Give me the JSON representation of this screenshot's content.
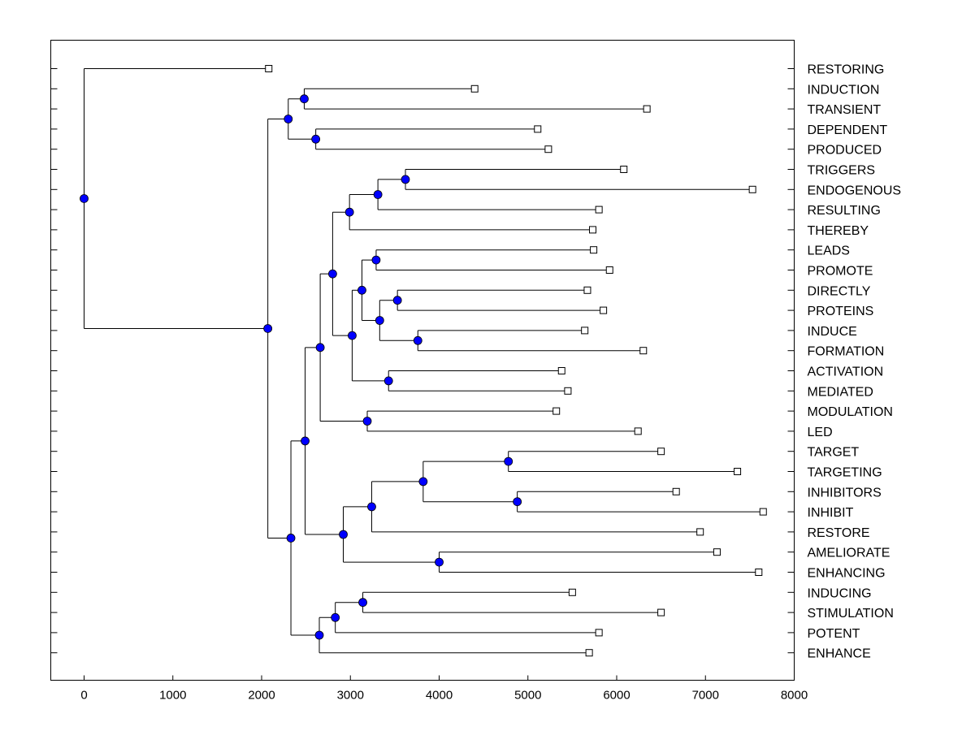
{
  "chart_data": {
    "type": "dendrogram",
    "title": "",
    "xlabel": "",
    "ylabel": "",
    "xlim": [
      -370,
      8000
    ],
    "x_ticks": [
      0,
      1000,
      2000,
      3000,
      4000,
      5000,
      6000,
      7000,
      8000
    ],
    "x_tick_labels": [
      "0",
      "1000",
      "2000",
      "3000",
      "4000",
      "5000",
      "6000",
      "7000",
      "8000"
    ],
    "colors": {
      "node": "#0000ff",
      "line": "#000000",
      "leaf_marker": "#ffffff"
    },
    "leaves": [
      {
        "label": "RESTORING",
        "x": 2080
      },
      {
        "label": "INDUCTION",
        "x": 4400
      },
      {
        "label": "TRANSIENT",
        "x": 6340
      },
      {
        "label": "DEPENDENT",
        "x": 5110
      },
      {
        "label": "PRODUCED",
        "x": 5230
      },
      {
        "label": "TRIGGERS",
        "x": 6080
      },
      {
        "label": "ENDOGENOUS",
        "x": 7530
      },
      {
        "label": "RESULTING",
        "x": 5800
      },
      {
        "label": "THEREBY",
        "x": 5730
      },
      {
        "label": "LEADS",
        "x": 5740
      },
      {
        "label": "PROMOTE",
        "x": 5920
      },
      {
        "label": "DIRECTLY",
        "x": 5670
      },
      {
        "label": "PROTEINS",
        "x": 5850
      },
      {
        "label": "INDUCE",
        "x": 5640
      },
      {
        "label": "FORMATION",
        "x": 6300
      },
      {
        "label": "ACTIVATION",
        "x": 5380
      },
      {
        "label": "MEDIATED",
        "x": 5450
      },
      {
        "label": "MODULATION",
        "x": 5320
      },
      {
        "label": "LED",
        "x": 6240
      },
      {
        "label": "TARGET",
        "x": 6500
      },
      {
        "label": "TARGETING",
        "x": 7360
      },
      {
        "label": "INHIBITORS",
        "x": 6670
      },
      {
        "label": "INHIBIT",
        "x": 7650
      },
      {
        "label": "RESTORE",
        "x": 6940
      },
      {
        "label": "AMELIORATE",
        "x": 7130
      },
      {
        "label": "ENHANCING",
        "x": 7600
      },
      {
        "label": "INDUCING",
        "x": 5500
      },
      {
        "label": "STIMULATION",
        "x": 6500
      },
      {
        "label": "POTENT",
        "x": 5800
      },
      {
        "label": "ENHANCE",
        "x": 5690
      }
    ],
    "merges": [
      {
        "id": "n1",
        "x": 2480,
        "children": [
          "INDUCTION",
          "TRANSIENT"
        ]
      },
      {
        "id": "n2",
        "x": 2610,
        "children": [
          "DEPENDENT",
          "PRODUCED"
        ]
      },
      {
        "id": "n3",
        "x": 2300,
        "children": [
          "n1",
          "n2"
        ]
      },
      {
        "id": "n4",
        "x": 3620,
        "children": [
          "TRIGGERS",
          "ENDOGENOUS"
        ]
      },
      {
        "id": "n5",
        "x": 3310,
        "children": [
          "n4",
          "RESULTING"
        ]
      },
      {
        "id": "n6",
        "x": 2990,
        "children": [
          "n5",
          "THEREBY"
        ]
      },
      {
        "id": "n7",
        "x": 3290,
        "children": [
          "LEADS",
          "PROMOTE"
        ]
      },
      {
        "id": "n8",
        "x": 3530,
        "children": [
          "DIRECTLY",
          "PROTEINS"
        ]
      },
      {
        "id": "n9",
        "x": 3760,
        "children": [
          "INDUCE",
          "FORMATION"
        ]
      },
      {
        "id": "n10",
        "x": 3330,
        "children": [
          "n8",
          "n9"
        ]
      },
      {
        "id": "n11",
        "x": 3130,
        "children": [
          "n7",
          "n10"
        ]
      },
      {
        "id": "n12",
        "x": 3430,
        "children": [
          "ACTIVATION",
          "MEDIATED"
        ]
      },
      {
        "id": "n13",
        "x": 3020,
        "children": [
          "n11",
          "n12"
        ]
      },
      {
        "id": "n14",
        "x": 2800,
        "children": [
          "n6",
          "n13"
        ]
      },
      {
        "id": "n15",
        "x": 3190,
        "children": [
          "MODULATION",
          "LED"
        ]
      },
      {
        "id": "n16",
        "x": 2660,
        "children": [
          "n14",
          "n15"
        ]
      },
      {
        "id": "n17",
        "x": 4780,
        "children": [
          "TARGET",
          "TARGETING"
        ]
      },
      {
        "id": "n18",
        "x": 4880,
        "children": [
          "INHIBITORS",
          "INHIBIT"
        ]
      },
      {
        "id": "n19",
        "x": 3820,
        "children": [
          "n17",
          "n18"
        ]
      },
      {
        "id": "n20",
        "x": 3240,
        "children": [
          "n19",
          "RESTORE"
        ]
      },
      {
        "id": "n21",
        "x": 4000,
        "children": [
          "AMELIORATE",
          "ENHANCING"
        ]
      },
      {
        "id": "n22",
        "x": 2920,
        "children": [
          "n20",
          "n21"
        ]
      },
      {
        "id": "n23",
        "x": 2490,
        "children": [
          "n16",
          "n22"
        ]
      },
      {
        "id": "n24",
        "x": 3140,
        "children": [
          "INDUCING",
          "STIMULATION"
        ]
      },
      {
        "id": "n25",
        "x": 2830,
        "children": [
          "n24",
          "POTENT"
        ]
      },
      {
        "id": "n26",
        "x": 2650,
        "children": [
          "n25",
          "ENHANCE"
        ]
      },
      {
        "id": "n27",
        "x": 2330,
        "children": [
          "n23",
          "n26"
        ]
      },
      {
        "id": "n28",
        "x": 2070,
        "children": [
          "n3",
          "n27"
        ]
      },
      {
        "id": "root",
        "x": 0,
        "children": [
          "RESTORING",
          "n28"
        ]
      }
    ]
  }
}
